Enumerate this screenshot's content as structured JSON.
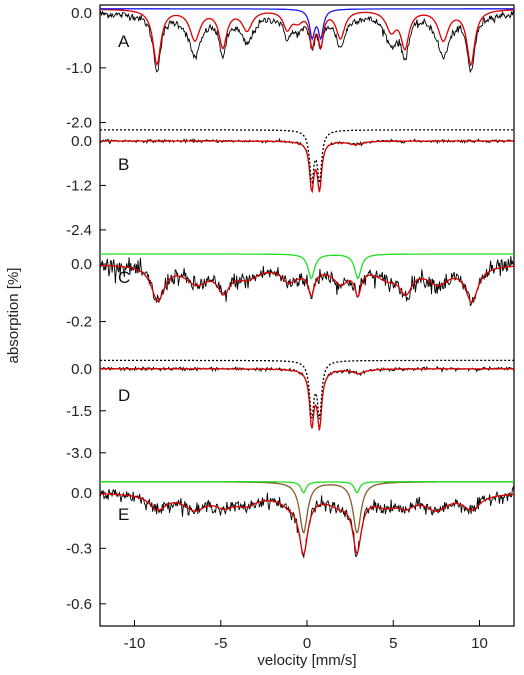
{
  "chart_data": {
    "type": "line",
    "xlabel": "velocity [mm/s]",
    "ylabel": "absorption [%]",
    "xlim": [
      -12,
      12
    ],
    "xticks": [
      -10,
      -5,
      0,
      5,
      10
    ],
    "x_tick_labels": [
      "-10",
      "-5",
      "0",
      "5",
      "10"
    ],
    "panels": [
      {
        "label": "A",
        "yticks": [
          0.0,
          -1.0,
          -2.0
        ],
        "y_tick_labels": [
          "0.0",
          "-1.0",
          "-2.0"
        ],
        "ylim": [
          -2.1,
          0.15
        ],
        "series": [
          {
            "kind": "data",
            "color": "#000000",
            "offset": 0,
            "components": [
              {
                "type": "sextet",
                "center": 0.4,
                "bhf_outer": 9.1,
                "depth": 1.0,
                "width": 0.55
              },
              {
                "type": "sextet",
                "center": 0.7,
                "bhf_outer": 7.2,
                "depth": 0.75,
                "width": 0.9
              },
              {
                "type": "doublet",
                "center": 0.55,
                "split": 0.5,
                "depth": 1.0,
                "width": 0.35
              }
            ],
            "noise": 0.07
          },
          {
            "kind": "fit",
            "color": "#e00000",
            "offset": 0.08,
            "components": [
              {
                "type": "sextet",
                "center": 0.4,
                "bhf_outer": 9.1,
                "depth": 1.0,
                "width": 0.55
              },
              {
                "type": "sextet",
                "center": 0.7,
                "bhf_outer": 7.2,
                "depth": 0.55,
                "width": 0.7
              },
              {
                "type": "doublet",
                "center": 0.55,
                "split": 0.5,
                "depth": 1.2,
                "width": 0.35
              }
            ]
          },
          {
            "kind": "component",
            "color": "#1a1aee",
            "offset": 0.08,
            "components": [
              {
                "type": "doublet",
                "center": 0.55,
                "split": 0.5,
                "depth": 1.0,
                "width": 0.35
              }
            ]
          }
        ]
      },
      {
        "label": "B",
        "yticks": [
          0.0,
          -1.2,
          -2.4
        ],
        "y_tick_labels": [
          "0.0",
          "-1.2",
          "-2.4"
        ],
        "ylim": [
          -2.7,
          0.35
        ],
        "series": [
          {
            "kind": "data",
            "color": "#000000",
            "offset": 0,
            "components": [
              {
                "type": "doublet",
                "center": 0.5,
                "split": 0.45,
                "depth": 2.5,
                "width": 0.3
              },
              {
                "type": "doublet",
                "center": 2.8,
                "split": 0.3,
                "depth": 0.1,
                "width": 0.8
              }
            ],
            "noise": 0.04
          },
          {
            "kind": "fit",
            "color": "#e00000",
            "offset": 0,
            "components": [
              {
                "type": "doublet",
                "center": 0.5,
                "split": 0.45,
                "depth": 2.5,
                "width": 0.3
              },
              {
                "type": "doublet",
                "center": 2.8,
                "split": 0.3,
                "depth": 0.1,
                "width": 0.8
              }
            ]
          },
          {
            "kind": "component",
            "color": "#000000",
            "dashed": true,
            "offset": 0.3,
            "components": [
              {
                "type": "doublet",
                "center": 0.5,
                "split": 0.45,
                "depth": 2.6,
                "width": 0.3
              }
            ]
          }
        ]
      },
      {
        "label": "C",
        "yticks": [
          0.0,
          -0.2
        ],
        "y_tick_labels": [
          "0.0",
          "-0.2"
        ],
        "ylim": [
          -0.33,
          0.08
        ],
        "series": [
          {
            "kind": "data",
            "color": "#000000",
            "offset": 0,
            "components": [
              {
                "type": "sextet",
                "center": 0.45,
                "bhf_outer": 9.1,
                "depth": 0.12,
                "width": 0.9
              },
              {
                "type": "sextet",
                "center": 0.6,
                "bhf_outer": 7.0,
                "depth": 0.06,
                "width": 1.6
              },
              {
                "type": "doublet",
                "center": 1.6,
                "split": 2.7,
                "depth": 0.17,
                "width": 0.45
              }
            ],
            "noise": 0.03
          },
          {
            "kind": "fit",
            "color": "#e00000",
            "offset": 0,
            "components": [
              {
                "type": "sextet",
                "center": 0.45,
                "bhf_outer": 9.1,
                "depth": 0.12,
                "width": 0.9
              },
              {
                "type": "sextet",
                "center": 0.6,
                "bhf_outer": 7.0,
                "depth": 0.06,
                "width": 1.6
              },
              {
                "type": "doublet",
                "center": 1.6,
                "split": 2.7,
                "depth": 0.17,
                "width": 0.45
              }
            ]
          },
          {
            "kind": "component",
            "color": "#22dd22",
            "offset": 0.035,
            "components": [
              {
                "type": "doublet",
                "center": 1.6,
                "split": 2.7,
                "depth": 0.17,
                "width": 0.45
              }
            ]
          }
        ]
      },
      {
        "label": "D",
        "yticks": [
          0.0,
          -1.5,
          -3.0
        ],
        "y_tick_labels": [
          "0.0",
          "-1.5",
          "-3.0"
        ],
        "ylim": [
          -3.9,
          0.35
        ],
        "series": [
          {
            "kind": "data",
            "color": "#000000",
            "offset": 0,
            "components": [
              {
                "type": "doublet",
                "center": 0.5,
                "split": 0.45,
                "depth": 3.7,
                "width": 0.3
              },
              {
                "type": "doublet",
                "center": 1.8,
                "split": 2.4,
                "depth": 0.3,
                "width": 0.9
              }
            ],
            "noise": 0.06
          },
          {
            "kind": "fit",
            "color": "#e00000",
            "offset": 0,
            "components": [
              {
                "type": "doublet",
                "center": 0.5,
                "split": 0.45,
                "depth": 3.7,
                "width": 0.3
              },
              {
                "type": "doublet",
                "center": 1.8,
                "split": 2.4,
                "depth": 0.3,
                "width": 0.9
              }
            ]
          },
          {
            "kind": "component",
            "color": "#000000",
            "dashed": true,
            "offset": 0.3,
            "components": [
              {
                "type": "doublet",
                "center": 0.5,
                "split": 0.45,
                "depth": 3.8,
                "width": 0.3
              }
            ]
          }
        ]
      },
      {
        "label": "E",
        "yticks": [
          0.0,
          -0.3,
          -0.6
        ],
        "y_tick_labels": [
          "0.0",
          "-0.3",
          "-0.6"
        ],
        "ylim": [
          -0.72,
          0.08
        ],
        "series": [
          {
            "kind": "data",
            "color": "#000000",
            "offset": 0,
            "components": [
              {
                "type": "sextet",
                "center": 0.45,
                "bhf_outer": 9.1,
                "depth": 0.08,
                "width": 1.2
              },
              {
                "type": "sextet",
                "center": 0.5,
                "bhf_outer": 7.0,
                "depth": 0.08,
                "width": 1.6
              },
              {
                "type": "doublet",
                "center": 1.35,
                "split": 3.1,
                "depth": 0.58,
                "width": 0.6
              }
            ],
            "noise": 0.035
          },
          {
            "kind": "fit",
            "color": "#e00000",
            "offset": 0,
            "components": [
              {
                "type": "sextet",
                "center": 0.45,
                "bhf_outer": 9.1,
                "depth": 0.08,
                "width": 1.2
              },
              {
                "type": "sextet",
                "center": 0.5,
                "bhf_outer": 7.0,
                "depth": 0.08,
                "width": 1.6
              },
              {
                "type": "doublet",
                "center": 1.35,
                "split": 3.1,
                "depth": 0.58,
                "width": 0.6
              }
            ]
          },
          {
            "kind": "component",
            "color": "#8b5a2b",
            "offset": 0.06,
            "components": [
              {
                "type": "doublet",
                "center": 1.35,
                "split": 3.1,
                "depth": 0.55,
                "width": 0.55
              }
            ]
          },
          {
            "kind": "component",
            "color": "#22dd22",
            "offset": 0.06,
            "components": [
              {
                "type": "doublet",
                "center": 1.35,
                "split": 3.1,
                "depth": 0.12,
                "width": 0.35
              }
            ]
          }
        ]
      }
    ]
  }
}
